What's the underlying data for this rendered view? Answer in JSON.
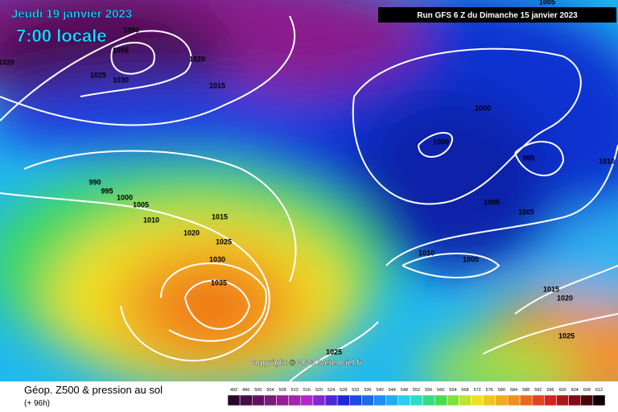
{
  "header": {
    "date": "Jeudi 19 janvier 2023",
    "time": "7:00 locale",
    "run": "Run GFS 6 Z du Dimanche 15 janvier 2023"
  },
  "map": {
    "copyright": "Copyright © 2023 Meteociel.fr",
    "isobar_labels": [
      1005,
      1020,
      1050,
      1055,
      1020,
      1015,
      1030,
      1025,
      990,
      995,
      1000,
      1005,
      1010,
      1015,
      1020,
      1025,
      1030,
      1035,
      1000,
      1000,
      995,
      1010,
      1005,
      1005,
      1010,
      1000,
      1015,
      1020,
      1025,
      1025
    ]
  },
  "footer": {
    "title": "Géop. Z500 & pression au sol",
    "lead_time": "(+ 96h)"
  },
  "legend": {
    "labels": [
      492,
      496,
      500,
      504,
      508,
      512,
      516,
      520,
      524,
      528,
      532,
      536,
      540,
      544,
      548,
      552,
      556,
      560,
      564,
      568,
      572,
      576,
      580,
      584,
      588,
      592,
      596,
      600,
      604,
      608,
      612
    ]
  }
}
